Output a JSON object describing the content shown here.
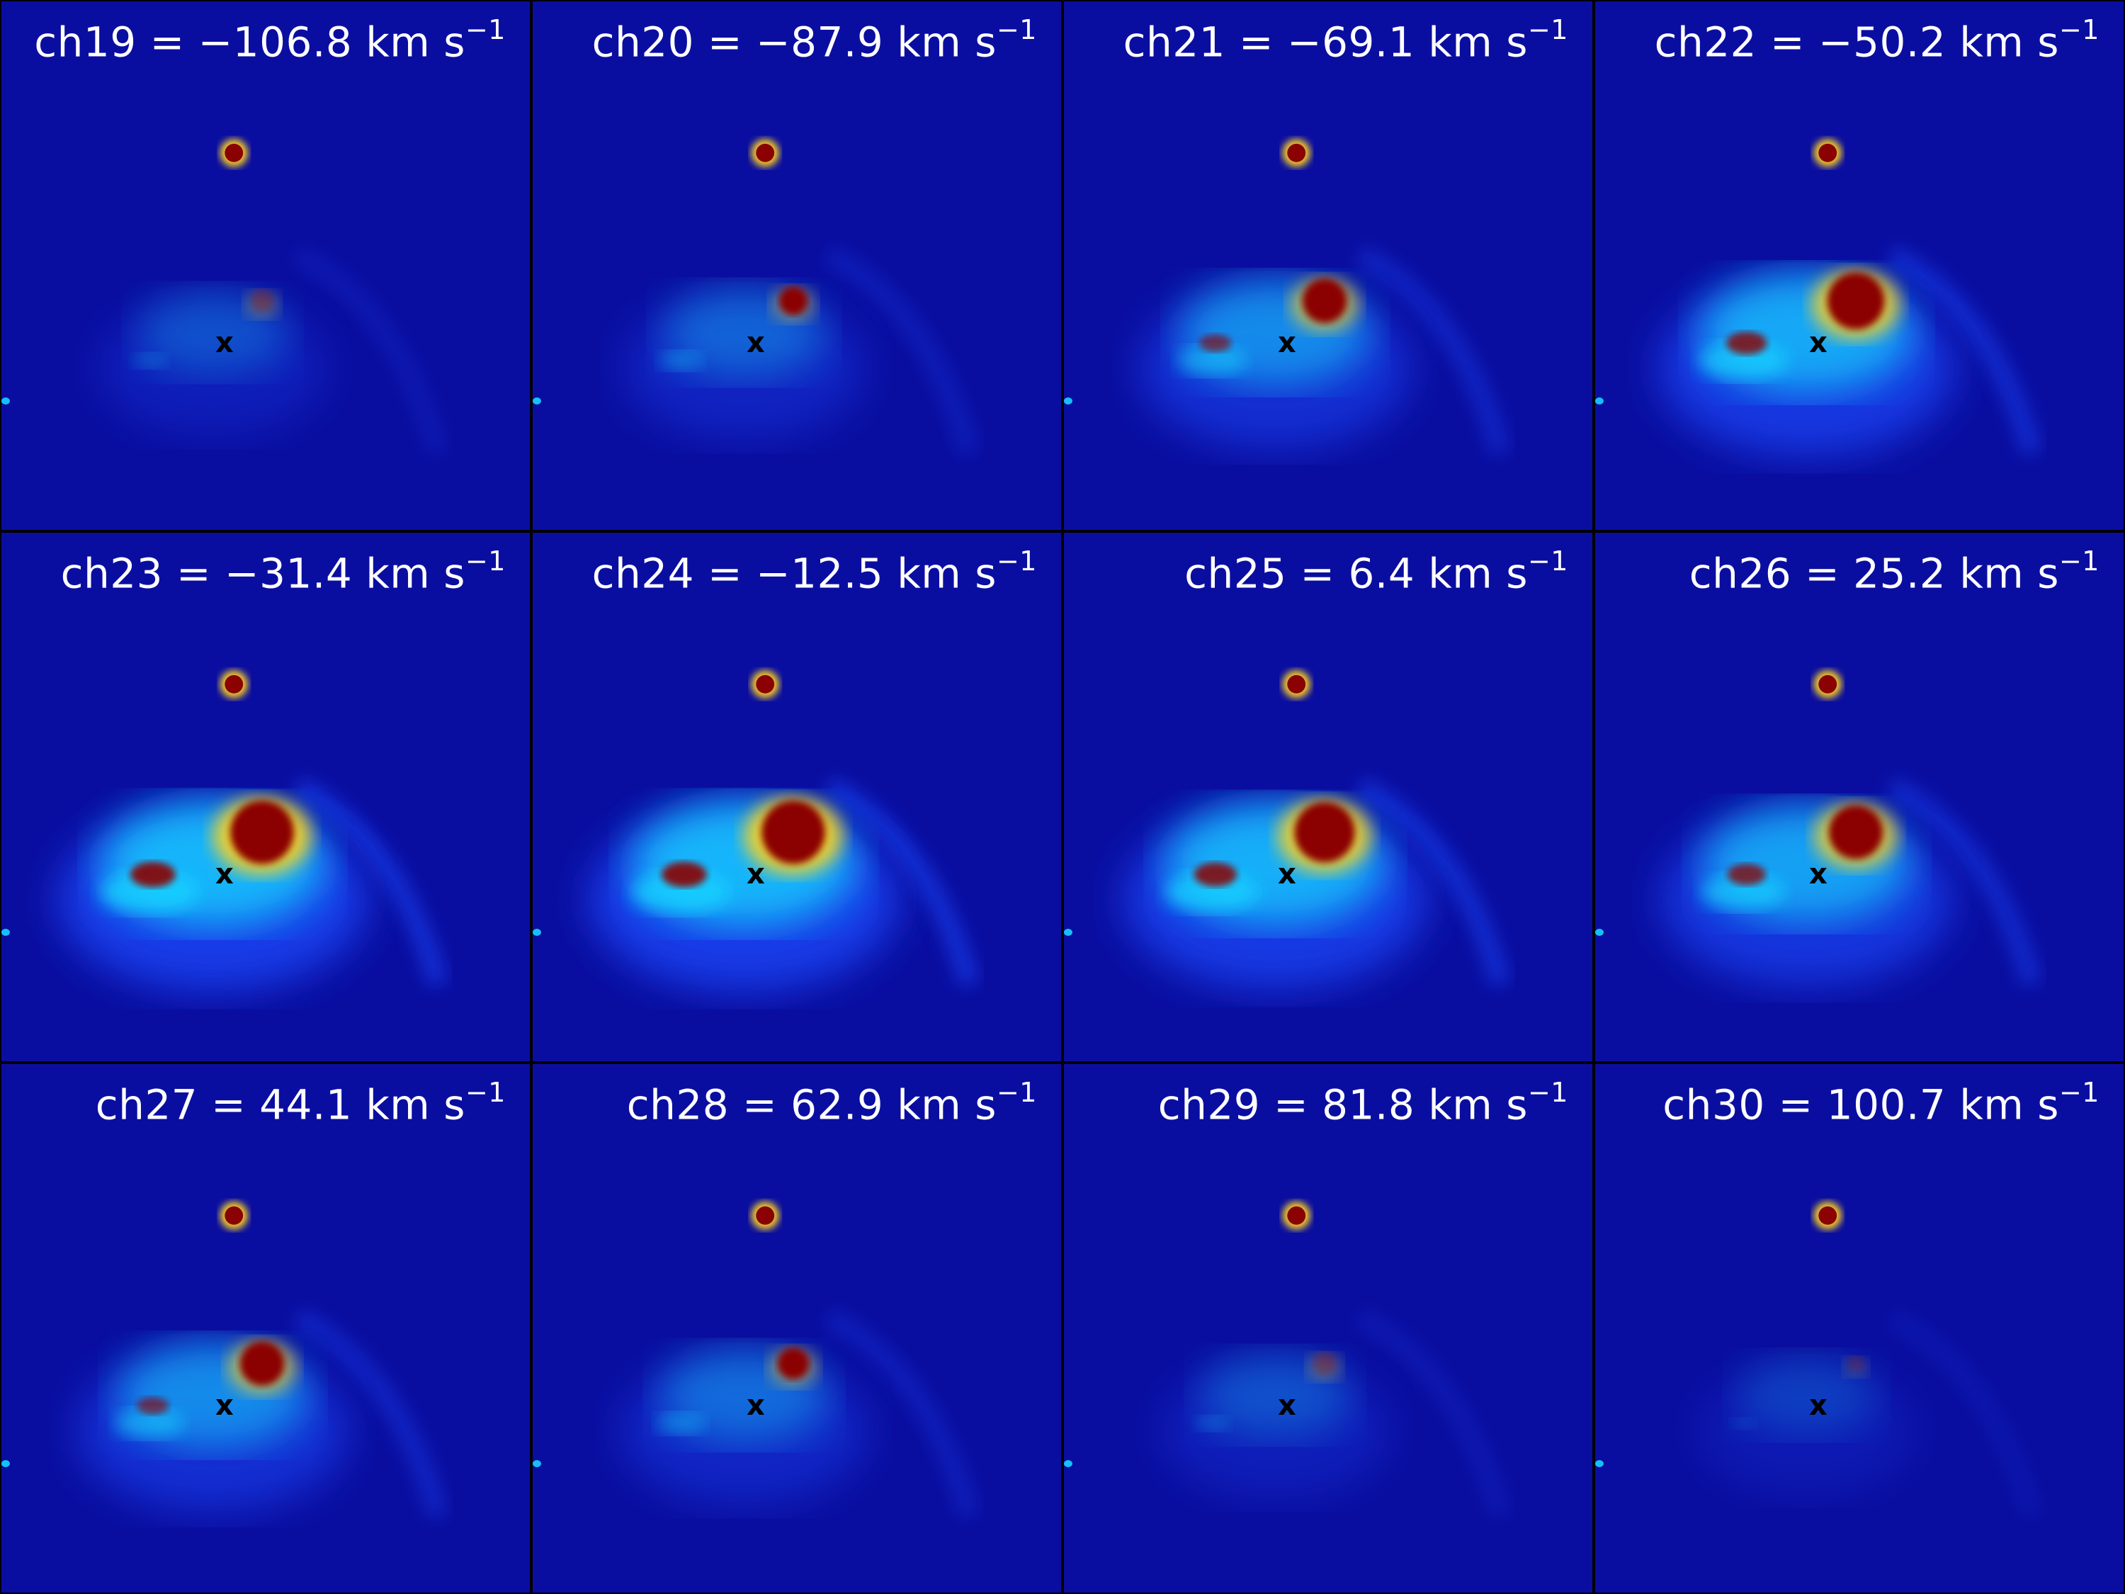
{
  "panels": [
    {
      "channel": "ch19",
      "velocity": "−106.8",
      "unit": "km s",
      "exp": "−1",
      "intensity": 0.35
    },
    {
      "channel": "ch20",
      "velocity": "−87.9",
      "unit": "km s",
      "exp": "−1",
      "intensity": 0.45
    },
    {
      "channel": "ch21",
      "velocity": "−69.1",
      "unit": "km s",
      "exp": "−1",
      "intensity": 0.7
    },
    {
      "channel": "ch22",
      "velocity": "−50.2",
      "unit": "km s",
      "exp": "−1",
      "intensity": 0.9
    },
    {
      "channel": "ch23",
      "velocity": "−31.4",
      "unit": "km s",
      "exp": "−1",
      "intensity": 1.0
    },
    {
      "channel": "ch24",
      "velocity": "−12.5",
      "unit": "km s",
      "exp": "−1",
      "intensity": 1.0
    },
    {
      "channel": "ch25",
      "velocity": "6.4",
      "unit": "km s",
      "exp": "−1",
      "intensity": 0.95
    },
    {
      "channel": "ch26",
      "velocity": "25.2",
      "unit": "km s",
      "exp": "−1",
      "intensity": 0.85
    },
    {
      "channel": "ch27",
      "velocity": "44.1",
      "unit": "km s",
      "exp": "−1",
      "intensity": 0.7
    },
    {
      "channel": "ch28",
      "velocity": "62.9",
      "unit": "km s",
      "exp": "−1",
      "intensity": 0.5
    },
    {
      "channel": "ch29",
      "velocity": "81.8",
      "unit": "km s",
      "exp": "−1",
      "intensity": 0.35
    },
    {
      "channel": "ch30",
      "velocity": "100.7",
      "unit": "km s",
      "exp": "−1",
      "intensity": 0.25
    }
  ],
  "marker": "x",
  "colors": {
    "background": "#0a0ea0",
    "faint": "#1a4cff",
    "mid": "#19d3ff",
    "bright": "#ffd21a",
    "peak": "#8b0000"
  }
}
